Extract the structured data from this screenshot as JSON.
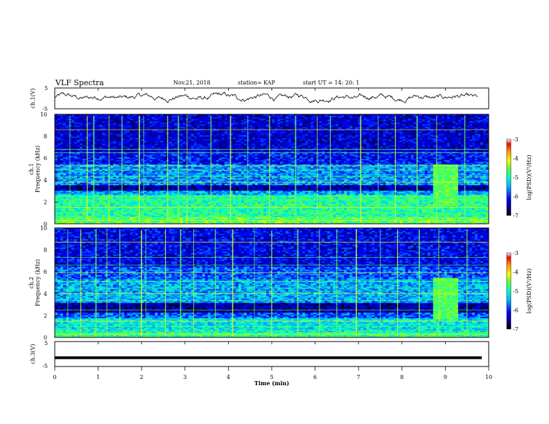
{
  "header": {
    "title": "VLF Spectra",
    "date": "Nov.21, 2018",
    "station": "station= KAP",
    "start": "start  UT =   14: 20: 1"
  },
  "colorbar": {
    "label": "log(PSD)(V²/Hz)",
    "ticks": [
      "-3",
      "-4",
      "-5",
      "-6",
      "-7"
    ],
    "range": [
      -7,
      -3
    ]
  },
  "chart_data": [
    {
      "type": "line",
      "name": "ch1-waveform",
      "ylabel": "ch.1(V)",
      "ylim": [
        -5,
        5
      ],
      "yticks": [
        "5",
        "-5"
      ],
      "xlim": [
        0,
        10
      ],
      "description_values": {
        "mean": 0.5,
        "amplitude": 2.5
      }
    },
    {
      "type": "heatmap",
      "name": "ch1-spectrogram",
      "ylabel_line1": "ch.1",
      "ylabel_line2": "Frequency  (kHz)",
      "ylim": [
        0,
        10
      ],
      "yticks": [
        "0",
        "2",
        "4",
        "6",
        "8",
        "10"
      ],
      "xlim": [
        0,
        10
      ],
      "zrange": [
        -7,
        -3
      ],
      "burst_interval_min": [
        8.75,
        9.3
      ]
    },
    {
      "type": "heatmap",
      "name": "ch2-spectrogram",
      "ylabel_line1": "ch.2",
      "ylabel_line2": "Frequency  (kHz)",
      "ylim": [
        0,
        10
      ],
      "yticks": [
        "0",
        "2",
        "4",
        "6",
        "8",
        "10"
      ],
      "xlim": [
        0,
        10
      ],
      "zrange": [
        -7,
        -3
      ],
      "burst_interval_min": [
        8.75,
        9.3
      ]
    },
    {
      "type": "line",
      "name": "ch3-waveform",
      "ylabel": "ch.3(V)",
      "ylim": [
        -5,
        5
      ],
      "yticks": [
        "5",
        "-5"
      ],
      "xlim": [
        0,
        10
      ],
      "constant_value": -1.5
    }
  ],
  "xaxis": {
    "label": "Time  (min)",
    "ticks": [
      "0",
      "1",
      "2",
      "3",
      "4",
      "5",
      "6",
      "7",
      "8",
      "9",
      "10"
    ]
  }
}
